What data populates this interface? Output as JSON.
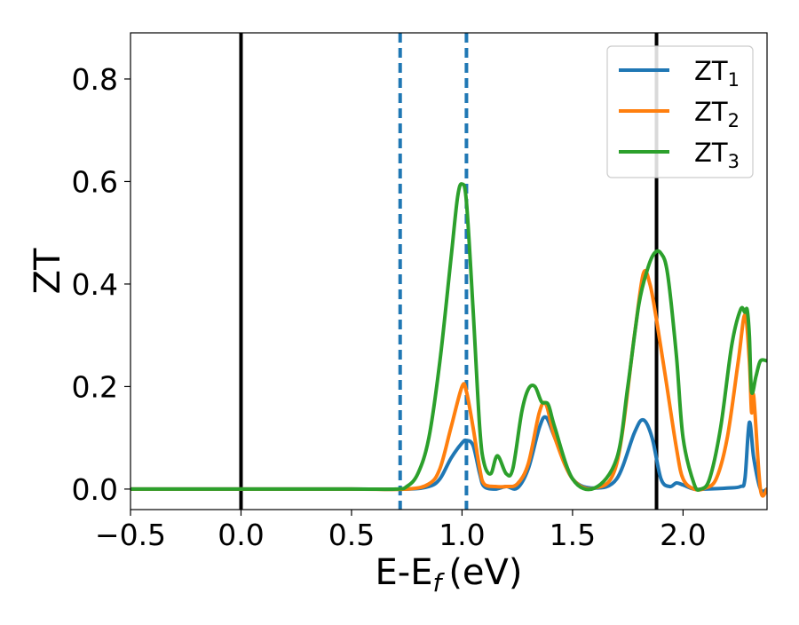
{
  "chart_data": {
    "type": "line",
    "xlabel": "E-E",
    "xlabel_sub": "f",
    "xlabel_unit": "(eV)",
    "ylabel": "ZT",
    "xlim": [
      -0.5,
      2.38
    ],
    "ylim": [
      -0.04,
      0.89
    ],
    "xticks": [
      -0.5,
      0.0,
      0.5,
      1.0,
      1.5,
      2.0
    ],
    "xtick_labels": [
      "−0.5",
      "0.0",
      "0.5",
      "1.0",
      "1.5",
      "2.0"
    ],
    "yticks": [
      0.0,
      0.2,
      0.4,
      0.6,
      0.8
    ],
    "ytick_labels": [
      "0.0",
      "0.2",
      "0.4",
      "0.6",
      "0.8"
    ],
    "legend": "top-right",
    "grid": false,
    "reference_lines": [
      {
        "x": 0.0,
        "style": "solid",
        "color": "#000000"
      },
      {
        "x": 0.72,
        "style": "dashed",
        "color": "#1f77b4"
      },
      {
        "x": 1.02,
        "style": "dashed",
        "color": "#1f77b4"
      },
      {
        "x": 1.88,
        "style": "solid",
        "color": "#000000"
      }
    ],
    "series": [
      {
        "name": "ZT",
        "sub": "1",
        "color": "#1f77b4",
        "x": [
          -0.5,
          0.0,
          0.5,
          0.75,
          0.85,
          0.9,
          0.95,
          1.0,
          1.02,
          1.05,
          1.08,
          1.1,
          1.15,
          1.2,
          1.25,
          1.3,
          1.35,
          1.38,
          1.42,
          1.5,
          1.6,
          1.7,
          1.78,
          1.82,
          1.86,
          1.9,
          1.94,
          1.97,
          2.0,
          2.05,
          2.1,
          2.2,
          2.26,
          2.28,
          2.3,
          2.32,
          2.35,
          2.38
        ],
        "y": [
          0.0,
          0.0,
          0.0,
          0.0,
          0.005,
          0.02,
          0.06,
          0.09,
          0.095,
          0.085,
          0.03,
          0.005,
          0.0,
          0.005,
          0.002,
          0.04,
          0.12,
          0.14,
          0.1,
          0.02,
          0.002,
          0.02,
          0.11,
          0.135,
          0.1,
          0.02,
          0.005,
          0.012,
          0.008,
          0.0,
          0.0,
          0.002,
          0.005,
          0.02,
          0.13,
          0.06,
          0.0,
          0.0
        ]
      },
      {
        "name": "ZT",
        "sub": "2",
        "color": "#ff7f0e",
        "x": [
          -0.5,
          0.0,
          0.5,
          0.75,
          0.85,
          0.9,
          0.95,
          1.0,
          1.02,
          1.05,
          1.08,
          1.1,
          1.15,
          1.2,
          1.25,
          1.3,
          1.35,
          1.38,
          1.42,
          1.5,
          1.6,
          1.7,
          1.78,
          1.82,
          1.85,
          1.88,
          1.92,
          1.97,
          2.0,
          2.05,
          2.1,
          2.15,
          2.2,
          2.25,
          2.28,
          2.3,
          2.31,
          2.32,
          2.35,
          2.38
        ],
        "y": [
          0.0,
          0.0,
          0.0,
          0.0,
          0.01,
          0.04,
          0.12,
          0.2,
          0.19,
          0.12,
          0.04,
          0.01,
          0.005,
          0.005,
          0.01,
          0.05,
          0.15,
          0.165,
          0.1,
          0.02,
          0.002,
          0.05,
          0.3,
          0.42,
          0.4,
          0.33,
          0.22,
          0.08,
          0.02,
          0.0,
          0.002,
          0.02,
          0.1,
          0.25,
          0.34,
          0.25,
          0.15,
          0.18,
          0.0,
          0.0
        ]
      },
      {
        "name": "ZT",
        "sub": "3",
        "color": "#2ca02c",
        "x": [
          -0.5,
          0.0,
          0.5,
          0.7,
          0.75,
          0.8,
          0.85,
          0.9,
          0.95,
          0.98,
          1.0,
          1.02,
          1.05,
          1.08,
          1.1,
          1.13,
          1.16,
          1.2,
          1.23,
          1.27,
          1.3,
          1.33,
          1.36,
          1.39,
          1.42,
          1.5,
          1.6,
          1.7,
          1.75,
          1.8,
          1.84,
          1.87,
          1.9,
          1.93,
          1.97,
          2.0,
          2.05,
          2.08,
          2.12,
          2.17,
          2.22,
          2.26,
          2.28,
          2.29,
          2.3,
          2.31,
          2.33,
          2.35,
          2.38
        ],
        "y": [
          0.0,
          0.0,
          0.0,
          0.0,
          0.005,
          0.03,
          0.1,
          0.25,
          0.45,
          0.57,
          0.595,
          0.56,
          0.35,
          0.12,
          0.05,
          0.03,
          0.065,
          0.03,
          0.04,
          0.15,
          0.195,
          0.2,
          0.17,
          0.165,
          0.12,
          0.02,
          0.002,
          0.06,
          0.2,
          0.36,
          0.43,
          0.46,
          0.46,
          0.42,
          0.26,
          0.1,
          0.01,
          0.0,
          0.02,
          0.12,
          0.28,
          0.35,
          0.345,
          0.35,
          0.3,
          0.19,
          0.22,
          0.25,
          0.25
        ]
      }
    ]
  }
}
